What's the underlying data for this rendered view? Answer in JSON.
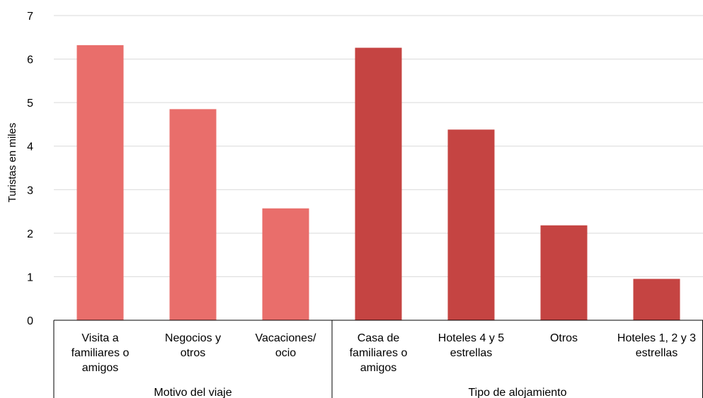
{
  "chart_data": {
    "type": "bar",
    "ylabel": "Turistas en miles",
    "ylim": [
      0,
      7
    ],
    "yticks": [
      0,
      1,
      2,
      3,
      4,
      5,
      6,
      7
    ],
    "grid": true,
    "groups": [
      {
        "name": "Motivo del viaje",
        "color": "#E96E6B",
        "categories": [
          [
            "Visita a",
            "familiares o",
            "amigos"
          ],
          [
            "Negocios y",
            "otros"
          ],
          [
            "Vacaciones/",
            "ocio"
          ]
        ],
        "values": [
          6.32,
          4.85,
          2.57
        ]
      },
      {
        "name": "Tipo de alojamiento",
        "color": "#C54442",
        "categories": [
          [
            "Casa de",
            "familiares o",
            "amigos"
          ],
          [
            "Hoteles 4 y 5",
            "estrellas"
          ],
          [
            "Otros"
          ],
          [
            "Hoteles 1, 2 y 3",
            "estrellas"
          ]
        ],
        "values": [
          6.26,
          4.38,
          2.18,
          0.95
        ]
      }
    ]
  }
}
